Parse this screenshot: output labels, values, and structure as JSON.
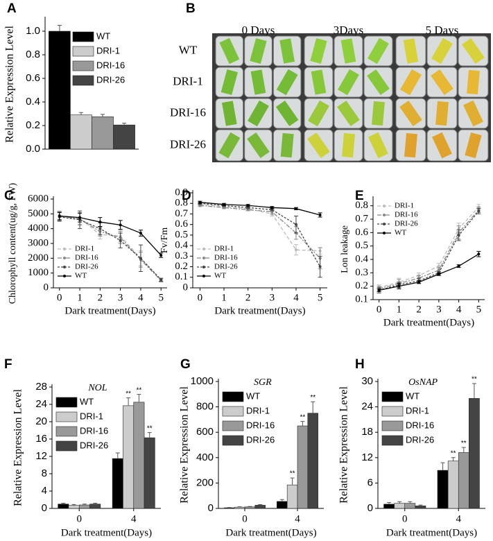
{
  "chart_data": [
    {
      "type": "bar",
      "panel": "A",
      "ylabel": "Relative Expression Level",
      "ylim": [
        0,
        1.1
      ],
      "yticks": [
        {
          "value": 0,
          "label": "0.0"
        },
        {
          "value": 0.2,
          "label": "0.2"
        },
        {
          "value": 0.4,
          "label": "0.4"
        },
        {
          "value": 0.6,
          "label": "0.6"
        },
        {
          "value": 0.8,
          "label": "0.8"
        },
        {
          "value": 1,
          "label": "1.0"
        }
      ],
      "legend": "upper right",
      "series": [
        {
          "name": "WT",
          "color": "#000000",
          "values": [
            1.0
          ],
          "errors": [
            0.05
          ]
        },
        {
          "name": "DRI-1",
          "color": "#cccccc",
          "values": [
            0.29
          ],
          "errors": [
            0.02
          ]
        },
        {
          "name": "DRI-16",
          "color": "#999999",
          "values": [
            0.275
          ],
          "errors": [
            0.02
          ]
        },
        {
          "name": "DRI-26",
          "color": "#444444",
          "values": [
            0.205
          ],
          "errors": [
            0.015
          ]
        }
      ]
    },
    {
      "type": "line",
      "panel": "C",
      "ylabel": "Chlorophyll content(ug/g, FW)",
      "xlabel": "Dark treatment(Days)",
      "x": [
        0,
        1,
        2,
        3,
        4,
        5
      ],
      "xlim": [
        -0.3,
        5.3
      ],
      "xticks": [
        0,
        1,
        2,
        3,
        4,
        5
      ],
      "ylim": [
        0,
        6000
      ],
      "yticks": [
        0,
        1000,
        2000,
        3000,
        4000,
        5000,
        6000
      ],
      "legend": "lower left",
      "series": [
        {
          "name": "DRI-1",
          "color": "#bbbbbb",
          "values": [
            4900,
            4700,
            3600,
            3500,
            2000,
            550
          ],
          "errors": [
            300,
            400,
            300,
            400,
            500,
            100
          ]
        },
        {
          "name": "DRI-16",
          "color": "#888888",
          "values": [
            4850,
            4650,
            3800,
            3400,
            1900,
            500
          ],
          "errors": [
            300,
            400,
            300,
            400,
            500,
            100
          ]
        },
        {
          "name": "DRI-26",
          "color": "#444444",
          "values": [
            4800,
            4600,
            4000,
            3200,
            2000,
            550
          ],
          "errors": [
            300,
            600,
            400,
            500,
            900,
            100
          ]
        },
        {
          "name": "WT",
          "color": "#000000",
          "values": [
            4850,
            4750,
            4450,
            4250,
            3700,
            2200
          ],
          "errors": [
            250,
            300,
            300,
            300,
            200,
            150
          ]
        }
      ]
    },
    {
      "type": "line",
      "panel": "D",
      "ylabel": "Fv/Fm",
      "xlabel": "Dark treatment(Days)",
      "x": [
        0,
        1,
        2,
        3,
        4,
        5
      ],
      "xlim": [
        -0.3,
        5.3
      ],
      "xticks": [
        0,
        1,
        2,
        3,
        4,
        5
      ],
      "ylim": [
        0,
        0.9
      ],
      "yticks": [
        0,
        0.1,
        0.2,
        0.3,
        0.4,
        0.5,
        0.6,
        0.7,
        0.8,
        0.9
      ],
      "legend": "lower left",
      "series": [
        {
          "name": "DRI-1",
          "color": "#bbbbbb",
          "values": [
            0.79,
            0.77,
            0.75,
            0.7,
            0.36,
            0.35
          ],
          "errors": [
            0.01,
            0.01,
            0.01,
            0.02,
            0.05,
            0.03
          ]
        },
        {
          "name": "DRI-16",
          "color": "#888888",
          "values": [
            0.78,
            0.76,
            0.74,
            0.72,
            0.52,
            0.28
          ],
          "errors": [
            0.01,
            0.01,
            0.01,
            0.02,
            0.06,
            0.1
          ]
        },
        {
          "name": "DRI-26",
          "color": "#444444",
          "values": [
            0.8,
            0.78,
            0.76,
            0.74,
            0.6,
            0.2
          ],
          "errors": [
            0.01,
            0.01,
            0.01,
            0.01,
            0.08,
            0.1
          ]
        },
        {
          "name": "WT",
          "color": "#000000",
          "values": [
            0.81,
            0.79,
            0.78,
            0.76,
            0.75,
            0.69
          ],
          "errors": [
            0.01,
            0.01,
            0.01,
            0.01,
            0.01,
            0.02
          ]
        }
      ]
    },
    {
      "type": "line",
      "panel": "E",
      "ylabel": "Lon leakage",
      "xlabel": "Dark treatment(Days)",
      "x": [
        0,
        1,
        2,
        3,
        4,
        5
      ],
      "xlim": [
        -0.3,
        5.3
      ],
      "xticks": [
        0,
        1,
        2,
        3,
        4,
        5
      ],
      "ylim": [
        0.1,
        0.85
      ],
      "yticks": [
        0.1,
        0.2,
        0.3,
        0.4,
        0.5,
        0.6,
        0.7,
        0.8
      ],
      "legend": "upper left",
      "series": [
        {
          "name": "DRI-1",
          "color": "#bbbbbb",
          "values": [
            0.19,
            0.23,
            0.28,
            0.35,
            0.63,
            0.79
          ],
          "errors": [
            0.02,
            0.03,
            0.02,
            0.02,
            0.04,
            0.02
          ]
        },
        {
          "name": "DRI-16",
          "color": "#888888",
          "values": [
            0.18,
            0.22,
            0.26,
            0.32,
            0.6,
            0.77
          ],
          "errors": [
            0.02,
            0.03,
            0.02,
            0.02,
            0.05,
            0.02
          ]
        },
        {
          "name": "DRI-26",
          "color": "#444444",
          "values": [
            0.17,
            0.21,
            0.24,
            0.3,
            0.58,
            0.76
          ],
          "errors": [
            0.02,
            0.02,
            0.02,
            0.01,
            0.04,
            0.02
          ]
        },
        {
          "name": "WT",
          "color": "#000000",
          "values": [
            0.17,
            0.2,
            0.23,
            0.29,
            0.35,
            0.44
          ],
          "errors": [
            0.01,
            0.02,
            0.01,
            0.01,
            0.01,
            0.02
          ]
        }
      ]
    },
    {
      "type": "bar",
      "panel": "F",
      "title": "NOL",
      "ylabel": "Relative Expression Level",
      "xlabel": "Dark treatment(Days)",
      "categories": [
        "0",
        "4"
      ],
      "ylim": [
        0,
        28
      ],
      "yticks": [
        0,
        4,
        8,
        12,
        16,
        20,
        24,
        28
      ],
      "legend": "upper left",
      "series": [
        {
          "name": "WT",
          "color": "#000000",
          "values": [
            1.0,
            11.5
          ],
          "errors": [
            0.2,
            1.3
          ]
        },
        {
          "name": "DRI-1",
          "color": "#cccccc",
          "values": [
            0.7,
            23.7
          ],
          "errors": [
            0.2,
            1.8
          ],
          "significance": [
            null,
            "**"
          ]
        },
        {
          "name": "DRI-16",
          "color": "#999999",
          "values": [
            0.8,
            24.5
          ],
          "errors": [
            0.2,
            1.8
          ],
          "significance": [
            null,
            "**"
          ]
        },
        {
          "name": "DRI-26",
          "color": "#444444",
          "values": [
            1.0,
            16.3
          ],
          "errors": [
            0.2,
            1.2
          ],
          "significance": [
            null,
            "**"
          ]
        }
      ]
    },
    {
      "type": "bar",
      "panel": "G",
      "title": "SGR",
      "ylabel": "Relative Expression Level",
      "xlabel": "Dark treatment(Days)",
      "categories": [
        "0",
        "4"
      ],
      "ylim": [
        0,
        1000
      ],
      "yticks": [
        0,
        200,
        400,
        600,
        800,
        1000
      ],
      "legend": "upper left",
      "series": [
        {
          "name": "WT",
          "color": "#000000",
          "values": [
            5,
            55
          ],
          "errors": [
            2,
            15
          ]
        },
        {
          "name": "DRI-1",
          "color": "#cccccc",
          "values": [
            10,
            185
          ],
          "errors": [
            3,
            55
          ],
          "significance": [
            null,
            "**"
          ]
        },
        {
          "name": "DRI-16",
          "color": "#999999",
          "values": [
            12,
            650
          ],
          "errors": [
            3,
            35
          ],
          "significance": [
            null,
            "**"
          ]
        },
        {
          "name": "DRI-26",
          "color": "#444444",
          "values": [
            25,
            750
          ],
          "errors": [
            5,
            90
          ],
          "significance": [
            null,
            "**"
          ]
        }
      ]
    },
    {
      "type": "bar",
      "panel": "H",
      "title": "OsNAP",
      "ylabel": "Relative Expression Level",
      "xlabel": "Dark treatment(Days)",
      "categories": [
        "0",
        "4"
      ],
      "ylim": [
        0,
        30
      ],
      "yticks": [
        0,
        6,
        12,
        18,
        24,
        30
      ],
      "legend": "upper left",
      "series": [
        {
          "name": "WT",
          "color": "#000000",
          "values": [
            1.0,
            9.0
          ],
          "errors": [
            0.4,
            1.8
          ]
        },
        {
          "name": "DRI-1",
          "color": "#cccccc",
          "values": [
            1.2,
            11.2
          ],
          "errors": [
            0.4,
            0.8
          ],
          "significance": [
            null,
            "**"
          ]
        },
        {
          "name": "DRI-16",
          "color": "#999999",
          "values": [
            1.2,
            13.2
          ],
          "errors": [
            0.4,
            1.2
          ],
          "significance": [
            null,
            "**"
          ]
        },
        {
          "name": "DRI-26",
          "color": "#444444",
          "values": [
            0.6,
            26
          ],
          "errors": [
            0.2,
            3.5
          ],
          "significance": [
            null,
            "**"
          ]
        }
      ]
    }
  ],
  "photo_panel": {
    "panel": "B",
    "columns": [
      "0 Days",
      "3Days",
      "5 Days"
    ],
    "rows": [
      "WT",
      "DRI-1",
      "DRI-16",
      "DRI-26"
    ]
  }
}
